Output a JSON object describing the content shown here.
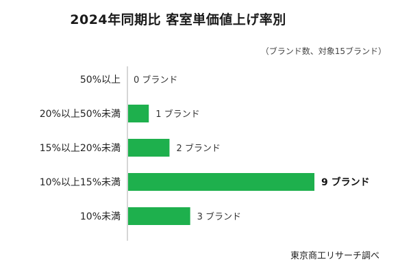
{
  "title": "2024年同期比  客室単価値上げ率別",
  "unit_note": "（ブランド数、対象15ブランド）",
  "source": "東京商工リサーチ調べ",
  "colors": {
    "bar": "#1eb04d",
    "axis": "#c8c8c8"
  },
  "chart_data": {
    "type": "bar",
    "orientation": "horizontal",
    "categories": [
      "50%以上",
      "20%以上50%未満",
      "15%以上20%未満",
      "10%以上15%未満",
      "10%未満"
    ],
    "values": [
      0,
      1,
      2,
      9,
      3
    ],
    "value_labels": [
      "0 ブランド",
      "1 ブランド",
      "2 ブランド",
      "9 ブランド",
      "3 ブランド"
    ],
    "highlight_index": 3,
    "title": "2024年同期比  客室単価値上げ率別",
    "xlim": [
      0,
      9
    ],
    "grid": false
  }
}
